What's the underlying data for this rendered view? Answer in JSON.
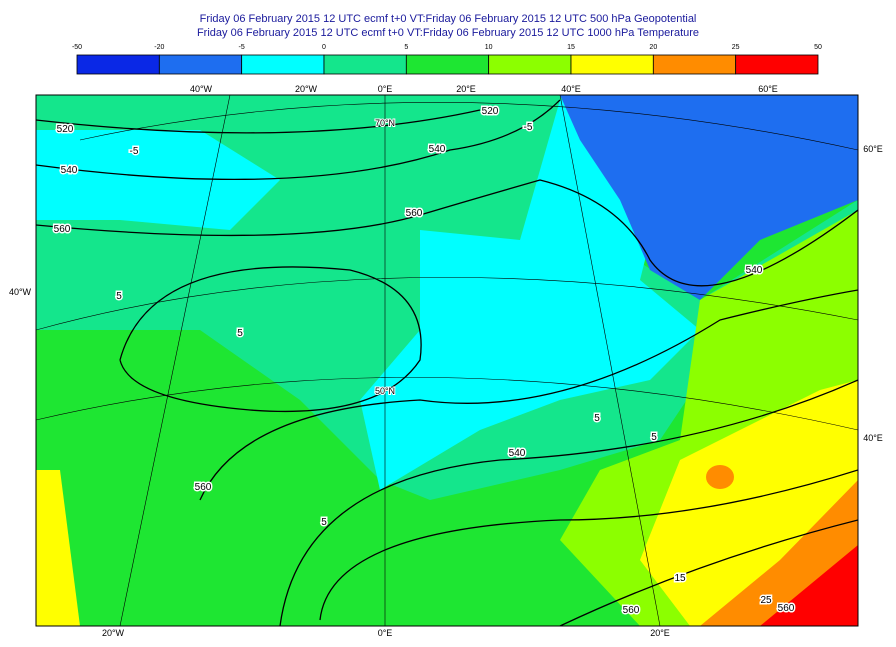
{
  "header": {
    "line1": "Friday 06 February 2015 12 UTC ecmf t+0 VT:Friday 06 February 2015 12 UTC 500 hPa  Geopotential",
    "line2": "Friday 06 February 2015 12 UTC ecmf t+0 VT:Friday 06 February 2015 12 UTC 1000 hPa  Temperature"
  },
  "colorbar": {
    "ticks": [
      -50,
      -20,
      -5,
      0,
      5,
      10,
      15,
      20,
      25,
      50
    ],
    "colors": [
      "#0a28e6",
      "#1e6ef0",
      "#00ffff",
      "#14e68c",
      "#1ee632",
      "#8cff00",
      "#ffff00",
      "#ff8c00",
      "#ff0000"
    ]
  },
  "map": {
    "top_labels": [
      "40°W",
      "20°W",
      "0°E",
      "20°E",
      "40°E",
      "60°E"
    ],
    "bottom_labels": [
      "20°W",
      "0°E",
      "20°E"
    ],
    "left_labels": [
      "40°W"
    ],
    "right_labels": [
      "60°E",
      "40°E"
    ],
    "graticule_labels": [
      "70°N",
      "50°N"
    ],
    "contour_labels": [
      "520",
      "-5",
      "540",
      "560",
      "5",
      "5",
      "540",
      "560",
      "-5",
      "520",
      "540",
      "5",
      "5",
      "540",
      "560",
      "5",
      "15",
      "560",
      "25",
      "560"
    ]
  }
}
